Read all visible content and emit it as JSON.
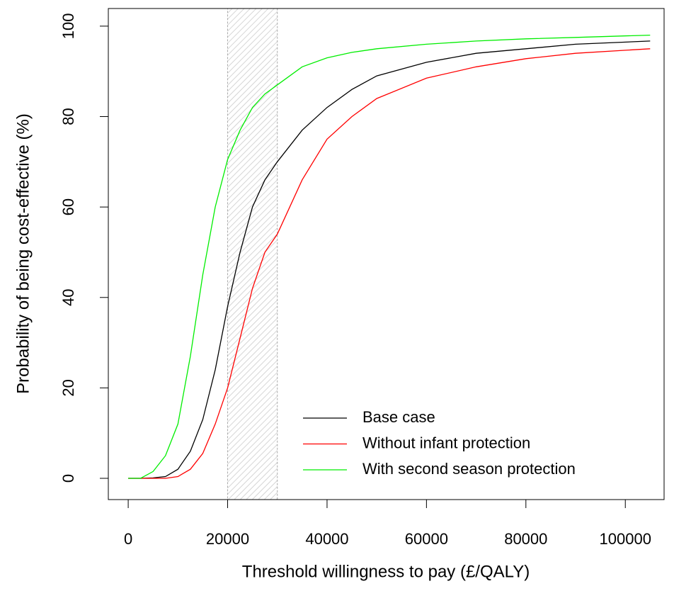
{
  "chart_data": {
    "type": "line",
    "x_label": "Threshold willingness to pay (£/QALY)",
    "y_label": "Probability of being cost-effective (%)",
    "x": [
      0,
      2500,
      5000,
      7500,
      10000,
      12500,
      15000,
      17500,
      20000,
      22500,
      25000,
      27500,
      30000,
      35000,
      40000,
      45000,
      50000,
      60000,
      70000,
      80000,
      90000,
      105000
    ],
    "series": [
      {
        "name": "Base case",
        "color": "#000000",
        "values": [
          0,
          0,
          0.1,
          0.4,
          2,
          6,
          13,
          24,
          38,
          50,
          60,
          66,
          70,
          77,
          82,
          86,
          89,
          92,
          94,
          95,
          96,
          96.7
        ]
      },
      {
        "name": "Without infant protection",
        "color": "#ff0000",
        "values": [
          0,
          0,
          0,
          0,
          0.4,
          2,
          5.5,
          12,
          20,
          31,
          42,
          50,
          54,
          66,
          75,
          80,
          84,
          88.5,
          91,
          92.8,
          94,
          95
        ]
      },
      {
        "name": "With second season protection",
        "color": "#00ee00",
        "values": [
          0,
          0,
          1.5,
          5,
          12,
          27,
          45,
          60,
          70.5,
          77,
          82,
          85,
          87,
          91,
          93,
          94.2,
          95,
          96,
          96.7,
          97.2,
          97.5,
          98
        ]
      }
    ],
    "shaded_region": [
      20000,
      30000
    ],
    "xlim": [
      -4000,
      107800
    ],
    "xticks": [
      0,
      20000,
      40000,
      60000,
      80000,
      100000
    ],
    "ylim": [
      -4.7,
      103.9
    ],
    "yticks": [
      0,
      20,
      40,
      60,
      80,
      100
    ],
    "legend": "bottom-right",
    "grid": false
  }
}
